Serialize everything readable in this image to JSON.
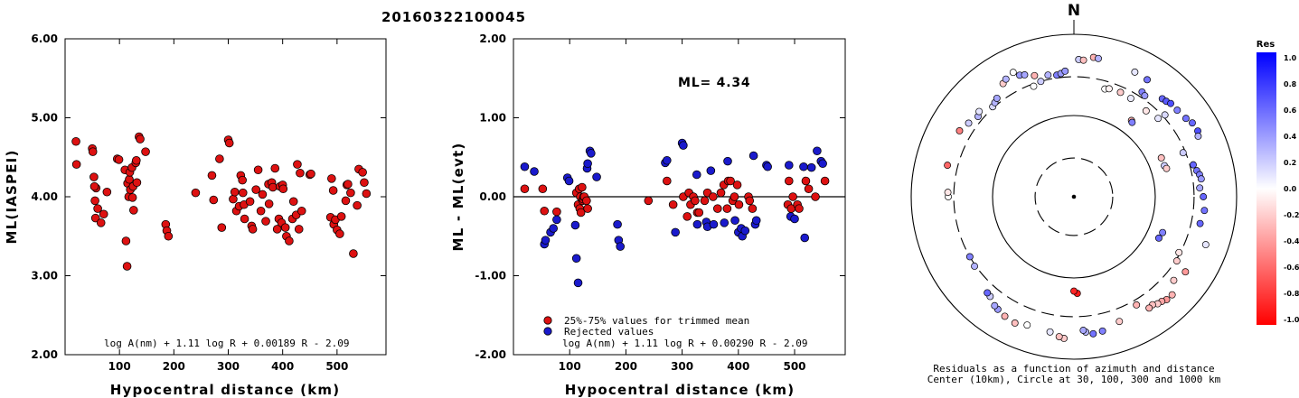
{
  "figure_title": "20160322100045",
  "colors": {
    "accepted": "#dd1111",
    "rejected": "#1a1acc",
    "marker_edge": "#000000"
  },
  "chart_data": [
    {
      "type": "scatter",
      "title": "",
      "xlabel": "Hypocentral distance (km)",
      "ylabel": "ML(IASPEI)",
      "xlim": [
        0,
        590
      ],
      "ylim": [
        2.0,
        6.0
      ],
      "xticks": [
        100,
        200,
        300,
        400,
        500
      ],
      "xtick_labels": [
        "100",
        "200",
        "300",
        "400",
        "500"
      ],
      "yticks": [
        2.0,
        3.0,
        4.0,
        5.0,
        6.0
      ],
      "ytick_labels": [
        "2.00",
        "3.00",
        "4.00",
        "5.00",
        "6.00"
      ],
      "formula": "log A(nm) + 1.11 log R + 0.00189 R - 2.09",
      "series": [
        {
          "x": [
            20,
            21,
            50,
            51,
            53,
            57,
            56,
            66,
            71,
            77,
            60,
            54,
            55,
            96,
            99,
            110,
            112,
            114,
            115,
            117,
            118,
            119,
            120,
            123,
            124,
            125,
            126,
            130,
            131,
            132,
            136,
            138,
            148,
            185,
            187,
            190,
            240,
            270,
            273,
            284,
            288,
            300,
            302,
            309,
            312,
            315,
            320,
            323,
            326,
            327,
            329,
            330,
            340,
            343,
            345,
            351,
            355,
            360,
            363,
            369,
            374,
            375,
            380,
            382,
            386,
            390,
            393,
            395,
            398,
            400,
            401,
            405,
            407,
            412,
            418,
            420,
            425,
            427,
            430,
            432,
            435,
            450,
            452,
            488,
            490,
            493,
            494,
            497,
            500,
            505,
            508,
            516,
            518,
            520,
            525,
            530,
            537,
            540,
            547,
            550,
            554
          ],
          "y": [
            4.7,
            4.41,
            4.61,
            4.57,
            4.25,
            4.11,
            3.73,
            3.67,
            3.78,
            4.06,
            3.85,
            4.13,
            3.95,
            4.48,
            4.47,
            4.34,
            3.44,
            3.12,
            4.17,
            4.0,
            4.22,
            4.31,
            4.09,
            4.37,
            3.99,
            4.13,
            3.83,
            4.43,
            4.46,
            4.18,
            4.76,
            4.73,
            4.57,
            3.65,
            3.57,
            3.5,
            4.05,
            4.27,
            3.96,
            4.48,
            3.61,
            4.72,
            4.68,
            3.97,
            4.06,
            3.82,
            3.88,
            4.27,
            4.21,
            4.05,
            3.9,
            3.72,
            3.94,
            3.63,
            3.59,
            4.09,
            4.34,
            3.82,
            4.03,
            3.69,
            4.16,
            3.91,
            4.18,
            4.12,
            4.36,
            3.59,
            3.72,
            4.13,
            3.67,
            4.15,
            4.1,
            3.61,
            3.5,
            3.44,
            3.72,
            3.94,
            3.77,
            4.41,
            3.59,
            4.3,
            3.82,
            4.28,
            4.29,
            3.74,
            4.23,
            4.08,
            3.65,
            3.71,
            3.58,
            3.53,
            3.75,
            3.95,
            4.15,
            4.16,
            4.05,
            3.28,
            3.89,
            4.35,
            4.31,
            4.18,
            4.04
          ]
        }
      ]
    },
    {
      "type": "scatter",
      "title": "",
      "xlabel": "Hypocentral distance (km)",
      "ylabel": "ML - ML(evt)",
      "xlim": [
        0,
        590
      ],
      "ylim": [
        -2.0,
        2.0
      ],
      "xticks": [
        100,
        200,
        300,
        400,
        500
      ],
      "xtick_labels": [
        "100",
        "200",
        "300",
        "400",
        "500"
      ],
      "yticks": [
        -2.0,
        -1.0,
        0.0,
        1.0,
        2.0
      ],
      "ytick_labels": [
        "-2.00",
        "-1.00",
        "0.00",
        "1.00",
        "2.00"
      ],
      "zero_line": 0.0,
      "annotation": "ML= 4.34",
      "formula": "log A(nm) + 1.11 log R + 0.00290 R - 2.09",
      "legend": [
        "25%-75% values for trimmed mean",
        "Rejected values"
      ],
      "legend_position": "bottom-left",
      "series": [
        {
          "name": "25%-75% values for trimmed mean",
          "x": [
            20,
            52,
            55,
            77,
            112,
            115,
            117,
            118,
            119,
            120,
            122,
            123,
            124,
            125,
            126,
            130,
            132,
            240,
            273,
            284,
            302,
            309,
            312,
            315,
            320,
            323,
            327,
            330,
            340,
            345,
            355,
            363,
            369,
            374,
            380,
            382,
            386,
            390,
            393,
            398,
            401,
            418,
            420,
            425,
            488,
            490,
            494,
            497,
            505,
            508,
            520,
            525,
            537,
            554
          ],
          "y": [
            0.1,
            0.1,
            -0.18,
            -0.19,
            0.05,
            -0.1,
            0.1,
            -0.15,
            0.0,
            -0.2,
            0.12,
            -0.05,
            -0.03,
            0.0,
            0.0,
            -0.05,
            -0.15,
            -0.05,
            0.2,
            -0.1,
            0.0,
            -0.25,
            0.05,
            -0.1,
            0.0,
            -0.05,
            -0.2,
            -0.2,
            -0.05,
            0.05,
            0.0,
            -0.15,
            0.05,
            0.15,
            -0.15,
            0.2,
            0.2,
            -0.05,
            0.0,
            0.15,
            -0.1,
            0.0,
            -0.05,
            -0.15,
            -0.1,
            0.2,
            -0.15,
            0.0,
            -0.1,
            -0.15,
            0.2,
            0.1,
            0.0,
            0.2
          ]
        },
        {
          "name": "Rejected values",
          "x": [
            20,
            37,
            55,
            57,
            66,
            71,
            77,
            96,
            99,
            110,
            112,
            115,
            131,
            132,
            136,
            138,
            148,
            185,
            187,
            190,
            270,
            273,
            288,
            300,
            302,
            326,
            327,
            343,
            345,
            351,
            356,
            375,
            381,
            394,
            400,
            405,
            407,
            412,
            427,
            430,
            432,
            450,
            452,
            490,
            493,
            500,
            516,
            518,
            530,
            540,
            547,
            550
          ],
          "y": [
            0.38,
            0.32,
            -0.6,
            -0.55,
            -0.45,
            -0.4,
            -0.29,
            0.24,
            0.2,
            -0.36,
            -0.78,
            -1.09,
            0.36,
            0.42,
            0.58,
            0.55,
            0.25,
            -0.35,
            -0.55,
            -0.63,
            0.43,
            0.46,
            -0.45,
            0.68,
            0.65,
            0.28,
            -0.35,
            -0.32,
            -0.38,
            0.33,
            -0.35,
            -0.33,
            0.45,
            -0.3,
            -0.45,
            -0.4,
            -0.5,
            -0.43,
            0.52,
            -0.35,
            -0.3,
            0.4,
            0.38,
            0.4,
            -0.25,
            -0.28,
            0.38,
            -0.52,
            0.37,
            0.58,
            0.45,
            0.42
          ]
        }
      ]
    },
    {
      "type": "scatter",
      "title": "N",
      "coordinate_system": "polar",
      "caption": [
        "Residuals as a function of azimuth and distance",
        "Center (10km), Circle at 30, 100, 300 and 1000 km"
      ],
      "rings_km": [
        30,
        100,
        300,
        1000
      ],
      "ring_styles": [
        "dashed",
        "solid",
        "dashed",
        "solid"
      ],
      "north_label": "N",
      "colorbar": {
        "title": "Res",
        "range": [
          -1.0,
          1.0
        ],
        "ticks": [
          1.0,
          0.8,
          0.6,
          0.4,
          0.2,
          0.0,
          -0.2,
          -0.4,
          -0.6,
          -0.8,
          -1.0
        ],
        "tick_labels": [
          "1.0",
          "0.8",
          "0.6",
          "0.4",
          "0.2",
          "0.0",
          "-0.2",
          "-0.4",
          "-0.6",
          "-0.8",
          "-1.0"
        ],
        "high_color": "#0000ff",
        "mid_color": "#ffffff",
        "low_color": "#ff0000"
      },
      "series": [
        {
          "name": "Residuals",
          "azimuth_deg": [
            2,
            4,
            8,
            10,
            16,
            18,
            24,
            26,
            30,
            32,
            33,
            35,
            37,
            38,
            40,
            42,
            44,
            46,
            47,
            48,
            50,
            55,
            58,
            62,
            64,
            66,
            68,
            71,
            73,
            75,
            78,
            80,
            82,
            86,
            90,
            96,
            102,
            110,
            112,
            116,
            118,
            122,
            124,
            130,
            135,
            138,
            140,
            142,
            144,
            146,
            150,
            160,
            168,
            172,
            175,
            176,
            178,
            180,
            184,
            186,
            190,
            200,
            205,
            210,
            214,
            216,
            220,
            222,
            235,
            240,
            270,
            272,
            284,
            300,
            305,
            310,
            312,
            318,
            320,
            322,
            328,
            330,
            334,
            336,
            338,
            340,
            342,
            344,
            348,
            352,
            354,
            356
          ],
          "distance_km": [
            490,
            485,
            540,
            535,
            240,
            250,
            255,
            510,
            250,
            500,
            345,
            330,
            150,
            145,
            240,
            420,
            430,
            450,
            260,
            320,
            455,
            480,
            520,
            530,
            500,
            150,
            280,
            150,
            155,
            330,
            350,
            370,
            380,
            355,
            390,
            410,
            385,
            530,
            150,
            145,
            290,
            310,
            450,
            400,
            510,
            505,
            480,
            470,
            440,
            450,
            345,
            430,
            490,
            505,
            470,
            445,
            155,
            145,
            560,
            540,
            490,
            480,
            520,
            500,
            470,
            455,
            400,
            390,
            310,
            300,
            350,
            355,
            400,
            420,
            380,
            345,
            370,
            310,
            325,
            345,
            440,
            470,
            505,
            435,
            415,
            280,
            370,
            300,
            340,
            325,
            335,
            355
          ],
          "residual": [
            0.2,
            -0.25,
            -0.3,
            0.3,
            0.0,
            -0.05,
            -0.2,
            0.1,
            0.08,
            0.55,
            0.5,
            0.4,
            -0.3,
            0.5,
            -0.1,
            0.6,
            0.65,
            0.7,
            0.1,
            0.15,
            0.5,
            0.55,
            0.6,
            0.7,
            0.3,
            -0.25,
            0.2,
            0.2,
            -0.2,
            0.6,
            0.55,
            0.5,
            0.4,
            0.35,
            0.6,
            0.55,
            0.6,
            0.1,
            0.5,
            0.6,
            -0.1,
            -0.2,
            -0.4,
            -0.2,
            -0.3,
            -0.4,
            -0.35,
            -0.2,
            -0.25,
            -0.3,
            -0.3,
            -0.2,
            0.5,
            0.55,
            0.3,
            0.35,
            -0.9,
            -0.85,
            -0.2,
            -0.25,
            0.1,
            0.0,
            -0.25,
            -0.3,
            0.4,
            0.35,
            0.2,
            0.6,
            0.3,
            0.5,
            0.0,
            -0.1,
            -0.6,
            -0.5,
            0.2,
            0.3,
            0.1,
            0.15,
            0.3,
            0.35,
            -0.2,
            0.3,
            0.0,
            0.4,
            0.35,
            0.0,
            -0.3,
            0.2,
            0.3,
            0.5,
            0.4,
            0.4
          ]
        }
      ]
    }
  ]
}
